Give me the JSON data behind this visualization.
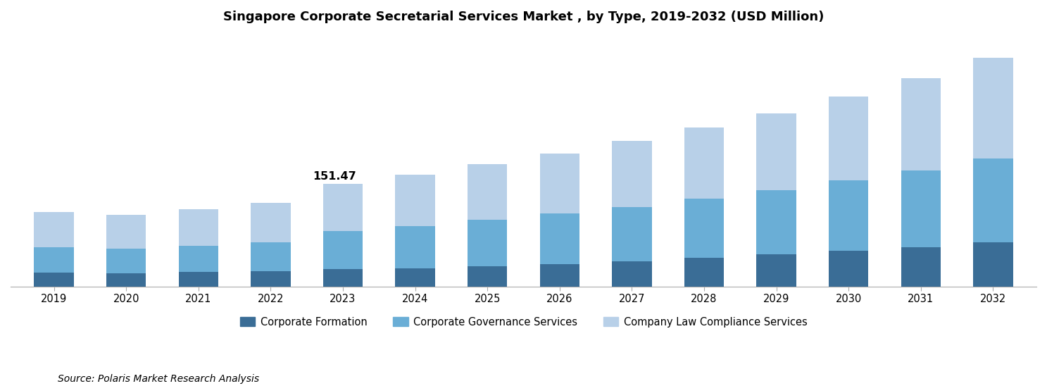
{
  "title": "Singapore Corporate Secretarial Services Market , by Type, 2019-2032 (USD Million)",
  "years": [
    2019,
    2020,
    2021,
    2022,
    2023,
    2024,
    2025,
    2026,
    2027,
    2028,
    2029,
    2030,
    2031,
    2032
  ],
  "corporate_formation": [
    20.0,
    19.5,
    21.0,
    22.5,
    25.0,
    27.0,
    30.0,
    33.0,
    37.0,
    42.0,
    47.0,
    52.0,
    58.0,
    65.0
  ],
  "corporate_governance": [
    38.0,
    36.5,
    39.0,
    42.0,
    57.0,
    62.0,
    68.0,
    74.0,
    80.0,
    87.0,
    95.0,
    104.0,
    113.0,
    123.0
  ],
  "company_law": [
    52.0,
    49.0,
    53.5,
    58.0,
    69.47,
    75.0,
    82.0,
    89.0,
    97.0,
    105.0,
    113.0,
    124.0,
    136.0,
    149.0
  ],
  "annotation_year": 2023,
  "annotation_text": "151.47",
  "colors": {
    "corporate_formation": "#3a6d96",
    "corporate_governance": "#6aaed6",
    "company_law": "#b8d0e8"
  },
  "legend_labels": [
    "Corporate Formation",
    "Corporate Governance Services",
    "Company Law Compliance Services"
  ],
  "source_text": "Source: Polaris Market Research Analysis",
  "bar_width": 0.55,
  "ylim": [
    0,
    370
  ],
  "background_color": "#ffffff",
  "border_color": "#aaaaaa"
}
